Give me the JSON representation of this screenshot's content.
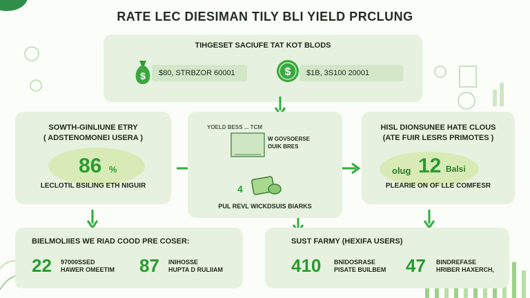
{
  "title": "RATE LEC DIESIMAN TILY BLI YIELD PRCLUNG",
  "top": {
    "header": "TIHGESET SACIUFE TAT KOT BLODS",
    "left_value": "$80, STRBZOR 60001",
    "right_value": "$1B, 3S100 20001",
    "left_icon": "money-bag-icon",
    "right_icon": "dollar-coin-icon"
  },
  "left_panel": {
    "title": "SOWTH-GINLIUNE ETRY",
    "subtitle": "( ADSTENOMONEI USERA )",
    "value": "86",
    "unit": "%",
    "caption": "LECLOTIL BSILING ETH NIGUIR"
  },
  "middle_panel": {
    "label": "YOELD BESS ... TCM",
    "note_line1": "W GOVSOERSE",
    "note_line2": "OUIK BRES",
    "number": "4",
    "caption": "PUL REVL WICKDSUIS BIARKS"
  },
  "right_panel": {
    "title": "HISL DIONSUNEE HATE CLOUS",
    "subtitle": "(ATE FUIR LESRS PRIMOTES )",
    "prefix": "olug",
    "value": "12",
    "suffix": "Balsi",
    "caption": "PLEARIE ON OF LLE COMFESR"
  },
  "bottom_left": {
    "title": "BIELMOLIIES WE RIAD COOD PRE COSER:",
    "stats": [
      {
        "value": "22",
        "line1": "97000SSED",
        "line2": "HAWER OMEETIM"
      },
      {
        "value": "87",
        "line1": "INIHOSSE",
        "line2": "HUPTA D RULIIAM"
      }
    ]
  },
  "bottom_right": {
    "title": "SUST FARMY (HEXIFA USERS)",
    "stats": [
      {
        "value": "410",
        "line1": "BNIDOSRASE",
        "line2": "PISATE BUILBEM"
      },
      {
        "value": "47",
        "line1": "BINDREFASE",
        "line2": "HRIBER HAXERCH,"
      }
    ]
  },
  "colors": {
    "accent": "#2a9a32",
    "panel": "#e6f2df",
    "halo": "#d8ebb6"
  }
}
